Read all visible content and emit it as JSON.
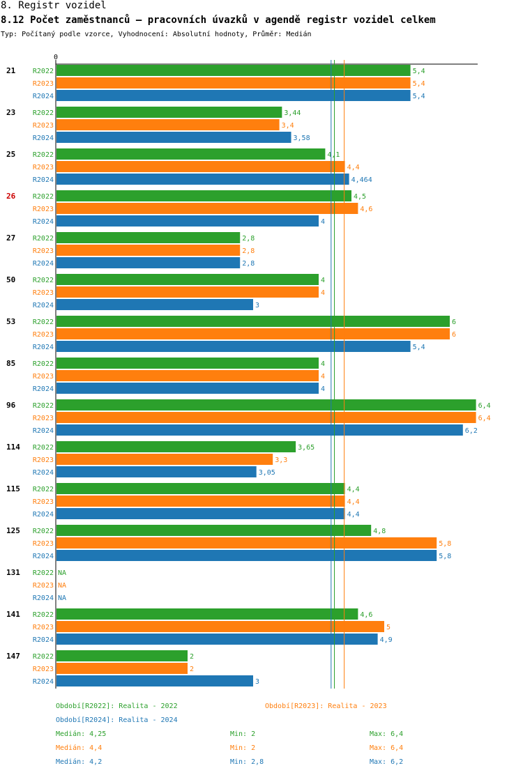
{
  "header": {
    "title": "8. Registr vozidel",
    "subtitle": "8.12 Počet zaměstnanců – pracovních úvazků v agendě registr vozidel celkem",
    "meta": "Typ: Počítaný podle vzorce, Vyhodnocení: Absolutní hodnoty, Průměr: Medián"
  },
  "colors": {
    "R2022": "#2ca02c",
    "R2023": "#ff7f0e",
    "R2024": "#1f77b4",
    "highlight": "#cc0000",
    "axis": "#000000"
  },
  "chart_data": {
    "type": "bar",
    "orientation": "horizontal",
    "axis_origin_label": "0",
    "xlim": [
      0,
      6.4
    ],
    "highlight_category": "26",
    "na_label": "NA",
    "categories": [
      "21",
      "23",
      "25",
      "26",
      "27",
      "50",
      "53",
      "85",
      "96",
      "114",
      "115",
      "125",
      "131",
      "141",
      "147"
    ],
    "series": [
      {
        "name": "R2022",
        "values": [
          5.4,
          3.44,
          4.1,
          4.5,
          2.8,
          4,
          6,
          4,
          6.4,
          3.65,
          4.4,
          4.8,
          null,
          4.6,
          2
        ],
        "labels": [
          "5,4",
          "3,44",
          "4,1",
          "4,5",
          "2,8",
          "4",
          "6",
          "4",
          "6,4",
          "3,65",
          "4,4",
          "4,8",
          "NA",
          "4,6",
          "2"
        ]
      },
      {
        "name": "R2023",
        "values": [
          5.4,
          3.4,
          4.4,
          4.6,
          2.8,
          4,
          6,
          4,
          6.4,
          3.3,
          4.4,
          5.8,
          null,
          5,
          2
        ],
        "labels": [
          "5,4",
          "3,4",
          "4,4",
          "4,6",
          "2,8",
          "4",
          "6",
          "4",
          "6,4",
          "3,3",
          "4,4",
          "5,8",
          "NA",
          "5",
          "2"
        ]
      },
      {
        "name": "R2024",
        "values": [
          5.4,
          3.58,
          4.464,
          4,
          2.8,
          3,
          5.4,
          4,
          6.2,
          3.05,
          4.4,
          5.8,
          null,
          4.9,
          3
        ],
        "labels": [
          "5,4",
          "3,58",
          "4,464",
          "4",
          "2,8",
          "3",
          "5,4",
          "4",
          "6,2",
          "3,05",
          "4,4",
          "5,8",
          "NA",
          "4,9",
          "3"
        ]
      }
    ],
    "reference_lines": [
      {
        "series": "R2022",
        "kind": "median",
        "value": 4.25
      },
      {
        "series": "R2023",
        "kind": "median",
        "value": 4.4
      },
      {
        "series": "R2024",
        "kind": "median",
        "value": 4.2
      }
    ]
  },
  "legend": {
    "items": [
      {
        "series": "R2022",
        "text": "Období[R2022]: Realita - 2022"
      },
      {
        "series": "R2023",
        "text": "Období[R2023]: Realita - 2023"
      },
      {
        "series": "R2024",
        "text": "Období[R2024]: Realita - 2024"
      }
    ],
    "stats": [
      {
        "series": "R2022",
        "median": "Medián: 4,25",
        "min": "Min: 2",
        "max": "Max: 6,4"
      },
      {
        "series": "R2023",
        "median": "Medián: 4,4",
        "min": "Min: 2",
        "max": "Max: 6,4"
      },
      {
        "series": "R2024",
        "median": "Medián: 4,2",
        "min": "Min: 2,8",
        "max": "Max: 6,2"
      }
    ]
  }
}
